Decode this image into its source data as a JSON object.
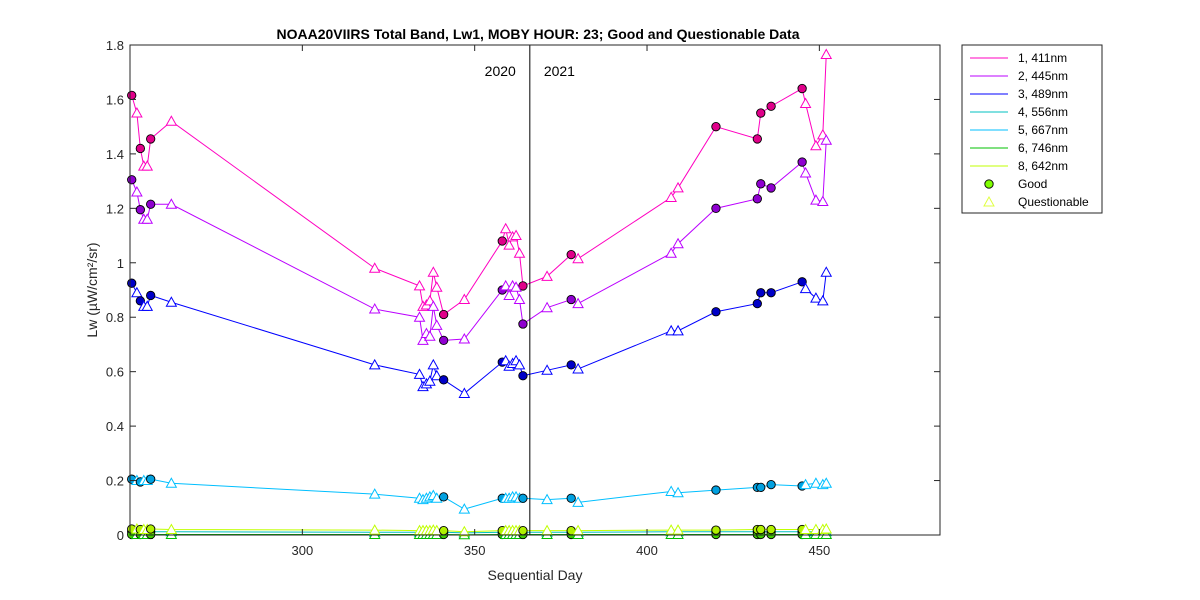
{
  "chart_data": {
    "type": "line",
    "title": "NOAA20VIIRS Total Band,  Lw1, MOBY HOUR: 23;  Good and Questionable Data",
    "xlabel": "Sequential Day",
    "ylabel": "Lw (µW/cm²/sr)",
    "xlim": [
      250,
      485
    ],
    "ylim": [
      0,
      1.8
    ],
    "xticks": [
      300,
      350,
      400,
      450
    ],
    "yticks": [
      0,
      0.2,
      0.4,
      0.6,
      0.8,
      1,
      1.2,
      1.4,
      1.6,
      1.8
    ],
    "ytick_labels": [
      "0",
      "0.2",
      "0.4",
      "0.6",
      "0.8",
      "1",
      "1.2",
      "1.4",
      "1.6",
      "1.8"
    ],
    "grid": false,
    "legend_position": "outside-top-right",
    "year_divider": {
      "x": 366,
      "left_label": "2020",
      "right_label": "2021"
    },
    "marker_legend": [
      {
        "name": "Good",
        "marker": "circle",
        "color": "#80ff00"
      },
      {
        "name": "Questionable",
        "marker": "triangle",
        "color": "#e0ff40"
      }
    ],
    "x": [
      250.5,
      252,
      253,
      254,
      255,
      256,
      262,
      321,
      334,
      335,
      336,
      337,
      338,
      339,
      341,
      347,
      358,
      359,
      360,
      361,
      362,
      363,
      364,
      371,
      378,
      380,
      407,
      409,
      420,
      432,
      433,
      436,
      445,
      446,
      449,
      451,
      452
    ],
    "quality": [
      "G",
      "Q",
      "G",
      "Q",
      "Q",
      "G",
      "Q",
      "Q",
      "Q",
      "Q",
      "Q",
      "Q",
      "Q",
      "Q",
      "G",
      "Q",
      "G",
      "Q",
      "Q",
      "Q",
      "Q",
      "Q",
      "G",
      "Q",
      "G",
      "Q",
      "Q",
      "Q",
      "G",
      "G",
      "G",
      "G",
      "G",
      "Q",
      "Q",
      "Q",
      "Q"
    ],
    "series": [
      {
        "name": "1, 411nm",
        "color": "#ff00c0",
        "marker_fill": "#e0008a",
        "values": [
          1.615,
          1.55,
          1.42,
          1.355,
          1.355,
          1.455,
          1.52,
          0.98,
          0.915,
          0.84,
          0.845,
          0.86,
          0.965,
          0.91,
          0.81,
          0.865,
          1.08,
          1.125,
          1.065,
          1.095,
          1.1,
          1.035,
          0.915,
          0.95,
          1.03,
          1.015,
          1.24,
          1.275,
          1.5,
          1.455,
          1.55,
          1.575,
          1.64,
          1.585,
          1.43,
          1.47,
          1.765
        ]
      },
      {
        "name": "2, 445nm",
        "color": "#bb00ff",
        "marker_fill": "#8f00d0",
        "values": [
          1.305,
          1.26,
          1.195,
          1.16,
          1.16,
          1.215,
          1.215,
          0.83,
          0.8,
          0.715,
          0.74,
          0.73,
          0.84,
          0.77,
          0.715,
          0.72,
          0.9,
          0.915,
          0.88,
          0.915,
          0.91,
          0.865,
          0.775,
          0.835,
          0.865,
          0.85,
          1.035,
          1.07,
          1.2,
          1.235,
          1.29,
          1.275,
          1.37,
          1.33,
          1.23,
          1.225,
          1.45
        ]
      },
      {
        "name": "3, 489nm",
        "color": "#0000ff",
        "marker_fill": "#0000c8",
        "values": [
          0.925,
          0.89,
          0.86,
          0.84,
          0.84,
          0.88,
          0.855,
          0.625,
          0.59,
          0.545,
          0.555,
          0.565,
          0.625,
          0.585,
          0.57,
          0.52,
          0.635,
          0.64,
          0.62,
          0.63,
          0.64,
          0.625,
          0.585,
          0.605,
          0.625,
          0.61,
          0.75,
          0.75,
          0.82,
          0.85,
          0.89,
          0.89,
          0.93,
          0.905,
          0.87,
          0.86,
          0.965
        ]
      },
      {
        "name": "4, 556nm",
        "color": "#00c0c0",
        "marker_fill": "#00a0a0",
        "values": [
          0.012,
          0.012,
          0.012,
          0.012,
          0.012,
          0.012,
          0.012,
          0.01,
          0.01,
          0.01,
          0.01,
          0.01,
          0.01,
          0.01,
          0.01,
          0.008,
          0.01,
          0.01,
          0.01,
          0.01,
          0.01,
          0.01,
          0.01,
          0.01,
          0.01,
          0.01,
          0.012,
          0.012,
          0.012,
          0.012,
          0.012,
          0.012,
          0.012,
          0.012,
          0.012,
          0.012,
          0.012
        ]
      },
      {
        "name": "5, 667nm",
        "color": "#00bfff",
        "marker_fill": "#00a0e0",
        "values": [
          0.205,
          0.2,
          0.195,
          0.2,
          0.2,
          0.205,
          0.19,
          0.15,
          0.135,
          0.13,
          0.135,
          0.14,
          0.145,
          0.135,
          0.14,
          0.095,
          0.135,
          0.135,
          0.135,
          0.14,
          0.14,
          0.135,
          0.135,
          0.13,
          0.135,
          0.12,
          0.16,
          0.155,
          0.165,
          0.175,
          0.175,
          0.185,
          0.18,
          0.185,
          0.19,
          0.185,
          0.19
        ]
      },
      {
        "name": "6, 746nm",
        "color": "#00c000",
        "marker_fill": "#40d000",
        "values": [
          0.002,
          0.002,
          0.002,
          0.002,
          0.002,
          0.002,
          0.002,
          0.002,
          0.002,
          0.002,
          0.002,
          0.002,
          0.002,
          0.002,
          0.002,
          0.001,
          0.002,
          0.002,
          0.002,
          0.002,
          0.002,
          0.002,
          0.002,
          0.002,
          0.002,
          0.002,
          0.002,
          0.002,
          0.002,
          0.002,
          0.002,
          0.002,
          0.002,
          0.002,
          0.002,
          0.002,
          0.002
        ]
      },
      {
        "name": "8, 642nm",
        "color": "#c0ff00",
        "marker_fill": "#b0f000",
        "values": [
          0.022,
          0.022,
          0.02,
          0.02,
          0.02,
          0.022,
          0.02,
          0.018,
          0.016,
          0.016,
          0.016,
          0.016,
          0.018,
          0.016,
          0.016,
          0.012,
          0.016,
          0.016,
          0.016,
          0.016,
          0.016,
          0.016,
          0.016,
          0.016,
          0.016,
          0.016,
          0.018,
          0.018,
          0.018,
          0.02,
          0.02,
          0.02,
          0.02,
          0.02,
          0.02,
          0.02,
          0.022
        ]
      }
    ]
  }
}
